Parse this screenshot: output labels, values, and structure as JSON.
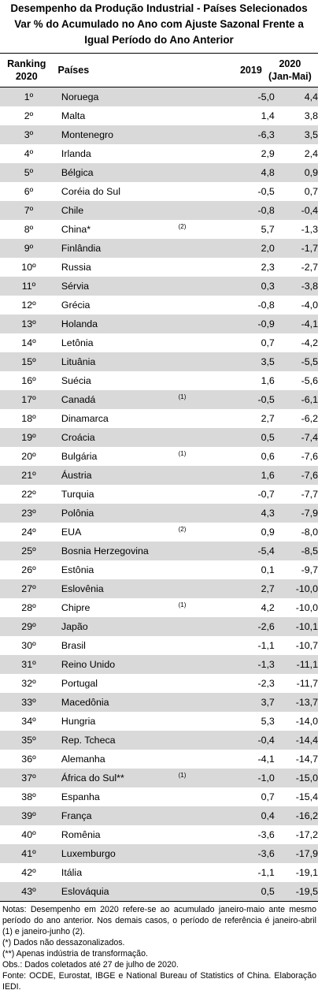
{
  "title": {
    "line1": "Desempenho da Produção Industrial - Países Selecionados",
    "line2": "Var % do Acumulado no Ano com Ajuste Sazonal Frente a",
    "line3": "Igual Período do Ano Anterior"
  },
  "header": {
    "rank_line1": "Ranking",
    "rank_line2": "2020",
    "country": "Países",
    "year2019": "2019",
    "year2020_line1": "2020",
    "year2020_line2": "(Jan-Mai)"
  },
  "rows": [
    {
      "rank": "1º",
      "country": "Noruega",
      "note": "",
      "v2019": "-5,0",
      "v2020": "4,4"
    },
    {
      "rank": "2º",
      "country": "Malta",
      "note": "",
      "v2019": "1,4",
      "v2020": "3,8"
    },
    {
      "rank": "3º",
      "country": "Montenegro",
      "note": "",
      "v2019": "-6,3",
      "v2020": "3,5"
    },
    {
      "rank": "4º",
      "country": "Irlanda",
      "note": "",
      "v2019": "2,9",
      "v2020": "2,4"
    },
    {
      "rank": "5º",
      "country": "Bélgica",
      "note": "",
      "v2019": "4,8",
      "v2020": "0,9"
    },
    {
      "rank": "6º",
      "country": "Coréia do Sul",
      "note": "",
      "v2019": "-0,5",
      "v2020": "0,7"
    },
    {
      "rank": "7º",
      "country": "Chile",
      "note": "",
      "v2019": "-0,8",
      "v2020": "-0,4"
    },
    {
      "rank": "8º",
      "country": "China*",
      "note": "(2)",
      "v2019": "5,7",
      "v2020": "-1,3"
    },
    {
      "rank": "9º",
      "country": "Finlândia",
      "note": "",
      "v2019": "2,0",
      "v2020": "-1,7"
    },
    {
      "rank": "10º",
      "country": "Russia",
      "note": "",
      "v2019": "2,3",
      "v2020": "-2,7"
    },
    {
      "rank": "11º",
      "country": "Sérvia",
      "note": "",
      "v2019": "0,3",
      "v2020": "-3,8"
    },
    {
      "rank": "12º",
      "country": "Grécia",
      "note": "",
      "v2019": "-0,8",
      "v2020": "-4,0"
    },
    {
      "rank": "13º",
      "country": "Holanda",
      "note": "",
      "v2019": "-0,9",
      "v2020": "-4,1"
    },
    {
      "rank": "14º",
      "country": "Letônia",
      "note": "",
      "v2019": "0,7",
      "v2020": "-4,2"
    },
    {
      "rank": "15º",
      "country": "Lituânia",
      "note": "",
      "v2019": "3,5",
      "v2020": "-5,5"
    },
    {
      "rank": "16º",
      "country": "Suécia",
      "note": "",
      "v2019": "1,6",
      "v2020": "-5,6"
    },
    {
      "rank": "17º",
      "country": "Canadá",
      "note": "(1)",
      "v2019": "-0,5",
      "v2020": "-6,1"
    },
    {
      "rank": "18º",
      "country": "Dinamarca",
      "note": "",
      "v2019": "2,7",
      "v2020": "-6,2"
    },
    {
      "rank": "19º",
      "country": "Croácia",
      "note": "",
      "v2019": "0,5",
      "v2020": "-7,4"
    },
    {
      "rank": "20º",
      "country": "Bulgária",
      "note": "(1)",
      "v2019": "0,6",
      "v2020": "-7,6"
    },
    {
      "rank": "21º",
      "country": "Áustria",
      "note": "",
      "v2019": "1,6",
      "v2020": "-7,6"
    },
    {
      "rank": "22º",
      "country": "Turquia",
      "note": "",
      "v2019": "-0,7",
      "v2020": "-7,7"
    },
    {
      "rank": "23º",
      "country": "Polônia",
      "note": "",
      "v2019": "4,3",
      "v2020": "-7,9"
    },
    {
      "rank": "24º",
      "country": "EUA",
      "note": "(2)",
      "v2019": "0,9",
      "v2020": "-8,0"
    },
    {
      "rank": "25º",
      "country": "Bosnia Herzegovina",
      "note": "",
      "v2019": "-5,4",
      "v2020": "-8,5"
    },
    {
      "rank": "26º",
      "country": "Estônia",
      "note": "",
      "v2019": "0,1",
      "v2020": "-9,7"
    },
    {
      "rank": "27º",
      "country": "Eslovênia",
      "note": "",
      "v2019": "2,7",
      "v2020": "-10,0"
    },
    {
      "rank": "28º",
      "country": "Chipre",
      "note": "(1)",
      "v2019": "4,2",
      "v2020": "-10,0"
    },
    {
      "rank": "29º",
      "country": "Japão",
      "note": "",
      "v2019": "-2,6",
      "v2020": "-10,1"
    },
    {
      "rank": "30º",
      "country": "Brasil",
      "note": "",
      "v2019": "-1,1",
      "v2020": "-10,7"
    },
    {
      "rank": "31º",
      "country": "Reino Unido",
      "note": "",
      "v2019": "-1,3",
      "v2020": "-11,1"
    },
    {
      "rank": "32º",
      "country": "Portugal",
      "note": "",
      "v2019": "-2,3",
      "v2020": "-11,7"
    },
    {
      "rank": "33º",
      "country": "Macedônia",
      "note": "",
      "v2019": "3,7",
      "v2020": "-13,7"
    },
    {
      "rank": "34º",
      "country": "Hungria",
      "note": "",
      "v2019": "5,3",
      "v2020": "-14,0"
    },
    {
      "rank": "35º",
      "country": "Rep. Tcheca",
      "note": "",
      "v2019": "-0,4",
      "v2020": "-14,4"
    },
    {
      "rank": "36º",
      "country": "Alemanha",
      "note": "",
      "v2019": "-4,1",
      "v2020": "-14,7"
    },
    {
      "rank": "37º",
      "country": "África do Sul**",
      "note": "(1)",
      "v2019": "-1,0",
      "v2020": "-15,0"
    },
    {
      "rank": "38º",
      "country": "Espanha",
      "note": "",
      "v2019": "0,7",
      "v2020": "-15,4"
    },
    {
      "rank": "39º",
      "country": "França",
      "note": "",
      "v2019": "0,4",
      "v2020": "-16,2"
    },
    {
      "rank": "40º",
      "country": "Romênia",
      "note": "",
      "v2019": "-3,6",
      "v2020": "-17,2"
    },
    {
      "rank": "41º",
      "country": "Luxemburgo",
      "note": "",
      "v2019": "-3,6",
      "v2020": "-17,9"
    },
    {
      "rank": "42º",
      "country": "Itália",
      "note": "",
      "v2019": "-1,1",
      "v2020": "-19,1"
    },
    {
      "rank": "43º",
      "country": "Eslováquia",
      "note": "",
      "v2019": "0,5",
      "v2020": "-19,5"
    }
  ],
  "notes": {
    "line1": "Notas: Desempenho em 2020 refere-se ao acumulado janeiro-maio ante mesmo período do ano anterior. Nos demais casos, o período de referência é janeiro-abril (1) e janeiro-junho (2).",
    "line2": "(*) Dados não dessazonalizados.",
    "line3": "(**) Apenas indústria de transformação.",
    "line4": "Obs.: Dados coletados até 27 de julho de 2020.",
    "line5": "Fonte: OCDE, Eurostat, IBGE e National Bureau of Statistics of China. Elaboração IEDI."
  },
  "colors": {
    "shade": "#d9d9d9",
    "text": "#000000",
    "background": "#ffffff"
  }
}
